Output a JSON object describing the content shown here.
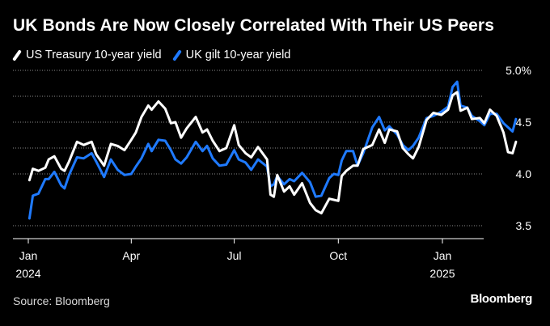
{
  "title": "UK Bonds Are Now Closely Correlated With Their US Peers",
  "legend": [
    {
      "label": "US Treasury 10-year yield",
      "color": "#ffffff"
    },
    {
      "label": "UK gilt 10-year yield",
      "color": "#1f7aff"
    }
  ],
  "source": "Source: Bloomberg",
  "brand": "Bloomberg",
  "chart_data": {
    "type": "line",
    "ylim": [
      3.45,
      5.0
    ],
    "yticks": [
      {
        "value": 5.0,
        "label": "5.0%"
      },
      {
        "value": 4.5,
        "label": "4.5"
      },
      {
        "value": 4.0,
        "label": "4.0"
      },
      {
        "value": 3.5,
        "label": "3.5"
      }
    ],
    "gridlines": [
      4.75,
      4.25
    ],
    "xlim": [
      "2024-01-01",
      "2025-03-31"
    ],
    "xticks": [
      {
        "date": "2024-01-01",
        "label": "Jan",
        "sublabel": "2024"
      },
      {
        "date": "2024-04-01",
        "label": "Apr",
        "sublabel": ""
      },
      {
        "date": "2024-07-01",
        "label": "Jul",
        "sublabel": ""
      },
      {
        "date": "2024-10-01",
        "label": "Oct",
        "sublabel": ""
      },
      {
        "date": "2025-01-01",
        "label": "Jan",
        "sublabel": "2025"
      }
    ],
    "series": [
      {
        "name": "US Treasury 10-year yield",
        "color": "#ffffff",
        "points": [
          [
            "2024-01-02",
            3.94
          ],
          [
            "2024-01-05",
            4.05
          ],
          [
            "2024-01-10",
            4.03
          ],
          [
            "2024-01-16",
            4.06
          ],
          [
            "2024-01-19",
            4.14
          ],
          [
            "2024-01-24",
            4.17
          ],
          [
            "2024-01-30",
            4.05
          ],
          [
            "2024-02-02",
            4.03
          ],
          [
            "2024-02-06",
            4.12
          ],
          [
            "2024-02-13",
            4.31
          ],
          [
            "2024-02-19",
            4.28
          ],
          [
            "2024-02-26",
            4.31
          ],
          [
            "2024-03-01",
            4.19
          ],
          [
            "2024-03-08",
            4.08
          ],
          [
            "2024-03-14",
            4.29
          ],
          [
            "2024-03-20",
            4.27
          ],
          [
            "2024-03-26",
            4.23
          ],
          [
            "2024-04-01",
            4.33
          ],
          [
            "2024-04-05",
            4.4
          ],
          [
            "2024-04-10",
            4.55
          ],
          [
            "2024-04-16",
            4.66
          ],
          [
            "2024-04-19",
            4.62
          ],
          [
            "2024-04-25",
            4.7
          ],
          [
            "2024-05-01",
            4.63
          ],
          [
            "2024-05-06",
            4.49
          ],
          [
            "2024-05-10",
            4.5
          ],
          [
            "2024-05-15",
            4.35
          ],
          [
            "2024-05-20",
            4.44
          ],
          [
            "2024-05-28",
            4.55
          ],
          [
            "2024-06-03",
            4.4
          ],
          [
            "2024-06-07",
            4.43
          ],
          [
            "2024-06-12",
            4.32
          ],
          [
            "2024-06-18",
            4.22
          ],
          [
            "2024-06-24",
            4.25
          ],
          [
            "2024-07-01",
            4.47
          ],
          [
            "2024-07-05",
            4.28
          ],
          [
            "2024-07-11",
            4.2
          ],
          [
            "2024-07-16",
            4.16
          ],
          [
            "2024-07-22",
            4.26
          ],
          [
            "2024-07-30",
            4.14
          ],
          [
            "2024-08-02",
            3.8
          ],
          [
            "2024-08-05",
            3.78
          ],
          [
            "2024-08-08",
            3.99
          ],
          [
            "2024-08-14",
            3.83
          ],
          [
            "2024-08-19",
            3.88
          ],
          [
            "2024-08-23",
            3.8
          ],
          [
            "2024-08-30",
            3.91
          ],
          [
            "2024-09-06",
            3.72
          ],
          [
            "2024-09-11",
            3.65
          ],
          [
            "2024-09-16",
            3.62
          ],
          [
            "2024-09-23",
            3.76
          ],
          [
            "2024-09-27",
            3.75
          ],
          [
            "2024-10-01",
            3.74
          ],
          [
            "2024-10-04",
            3.98
          ],
          [
            "2024-10-08",
            4.03
          ],
          [
            "2024-10-14",
            4.08
          ],
          [
            "2024-10-18",
            4.08
          ],
          [
            "2024-10-23",
            4.24
          ],
          [
            "2024-10-31",
            4.28
          ],
          [
            "2024-11-06",
            4.43
          ],
          [
            "2024-11-11",
            4.3
          ],
          [
            "2024-11-15",
            4.43
          ],
          [
            "2024-11-22",
            4.41
          ],
          [
            "2024-11-27",
            4.25
          ],
          [
            "2024-12-02",
            4.19
          ],
          [
            "2024-12-06",
            4.15
          ],
          [
            "2024-12-11",
            4.26
          ],
          [
            "2024-12-18",
            4.52
          ],
          [
            "2024-12-24",
            4.59
          ],
          [
            "2024-12-31",
            4.57
          ],
          [
            "2025-01-06",
            4.62
          ],
          [
            "2025-01-10",
            4.76
          ],
          [
            "2025-01-14",
            4.79
          ],
          [
            "2025-01-17",
            4.61
          ],
          [
            "2025-01-23",
            4.64
          ],
          [
            "2025-01-27",
            4.53
          ],
          [
            "2025-02-03",
            4.54
          ],
          [
            "2025-02-07",
            4.49
          ],
          [
            "2025-02-12",
            4.62
          ],
          [
            "2025-02-18",
            4.56
          ],
          [
            "2025-02-24",
            4.4
          ],
          [
            "2025-02-28",
            4.21
          ],
          [
            "2025-03-04",
            4.2
          ],
          [
            "2025-03-07",
            4.31
          ]
        ]
      },
      {
        "name": "UK gilt 10-year yield",
        "color": "#1f7aff",
        "points": [
          [
            "2024-01-02",
            3.57
          ],
          [
            "2024-01-05",
            3.79
          ],
          [
            "2024-01-10",
            3.81
          ],
          [
            "2024-01-16",
            3.95
          ],
          [
            "2024-01-19",
            3.95
          ],
          [
            "2024-01-24",
            4.02
          ],
          [
            "2024-01-30",
            3.89
          ],
          [
            "2024-02-02",
            3.86
          ],
          [
            "2024-02-06",
            3.99
          ],
          [
            "2024-02-13",
            4.16
          ],
          [
            "2024-02-19",
            4.15
          ],
          [
            "2024-02-26",
            4.2
          ],
          [
            "2024-03-01",
            4.12
          ],
          [
            "2024-03-08",
            3.97
          ],
          [
            "2024-03-14",
            4.14
          ],
          [
            "2024-03-20",
            4.04
          ],
          [
            "2024-03-26",
            3.99
          ],
          [
            "2024-04-01",
            4.0
          ],
          [
            "2024-04-05",
            4.07
          ],
          [
            "2024-04-10",
            4.15
          ],
          [
            "2024-04-16",
            4.29
          ],
          [
            "2024-04-19",
            4.22
          ],
          [
            "2024-04-25",
            4.33
          ],
          [
            "2024-05-01",
            4.32
          ],
          [
            "2024-05-06",
            4.23
          ],
          [
            "2024-05-10",
            4.14
          ],
          [
            "2024-05-15",
            4.1
          ],
          [
            "2024-05-20",
            4.16
          ],
          [
            "2024-05-28",
            4.31
          ],
          [
            "2024-06-03",
            4.22
          ],
          [
            "2024-06-07",
            4.27
          ],
          [
            "2024-06-12",
            4.15
          ],
          [
            "2024-06-18",
            4.08
          ],
          [
            "2024-06-24",
            4.09
          ],
          [
            "2024-07-01",
            4.23
          ],
          [
            "2024-07-05",
            4.14
          ],
          [
            "2024-07-11",
            4.11
          ],
          [
            "2024-07-16",
            4.04
          ],
          [
            "2024-07-22",
            4.14
          ],
          [
            "2024-07-30",
            4.07
          ],
          [
            "2024-08-02",
            3.88
          ],
          [
            "2024-08-05",
            3.9
          ],
          [
            "2024-08-08",
            3.98
          ],
          [
            "2024-08-14",
            3.9
          ],
          [
            "2024-08-19",
            3.95
          ],
          [
            "2024-08-23",
            3.93
          ],
          [
            "2024-08-30",
            4.01
          ],
          [
            "2024-09-06",
            3.92
          ],
          [
            "2024-09-11",
            3.78
          ],
          [
            "2024-09-16",
            3.79
          ],
          [
            "2024-09-23",
            3.96
          ],
          [
            "2024-09-27",
            4.0
          ],
          [
            "2024-10-01",
            3.99
          ],
          [
            "2024-10-04",
            4.13
          ],
          [
            "2024-10-08",
            4.22
          ],
          [
            "2024-10-14",
            4.22
          ],
          [
            "2024-10-18",
            4.08
          ],
          [
            "2024-10-23",
            4.2
          ],
          [
            "2024-10-31",
            4.45
          ],
          [
            "2024-11-06",
            4.55
          ],
          [
            "2024-11-11",
            4.42
          ],
          [
            "2024-11-15",
            4.46
          ],
          [
            "2024-11-22",
            4.38
          ],
          [
            "2024-11-27",
            4.28
          ],
          [
            "2024-12-02",
            4.23
          ],
          [
            "2024-12-06",
            4.27
          ],
          [
            "2024-12-11",
            4.35
          ],
          [
            "2024-12-18",
            4.54
          ],
          [
            "2024-12-24",
            4.56
          ],
          [
            "2024-12-31",
            4.6
          ],
          [
            "2025-01-06",
            4.65
          ],
          [
            "2025-01-10",
            4.84
          ],
          [
            "2025-01-14",
            4.89
          ],
          [
            "2025-01-17",
            4.66
          ],
          [
            "2025-01-23",
            4.64
          ],
          [
            "2025-01-27",
            4.56
          ],
          [
            "2025-02-03",
            4.51
          ],
          [
            "2025-02-07",
            4.47
          ],
          [
            "2025-02-12",
            4.58
          ],
          [
            "2025-02-18",
            4.58
          ],
          [
            "2025-02-24",
            4.49
          ],
          [
            "2025-02-28",
            4.45
          ],
          [
            "2025-03-04",
            4.41
          ],
          [
            "2025-03-07",
            4.53
          ]
        ]
      }
    ]
  }
}
